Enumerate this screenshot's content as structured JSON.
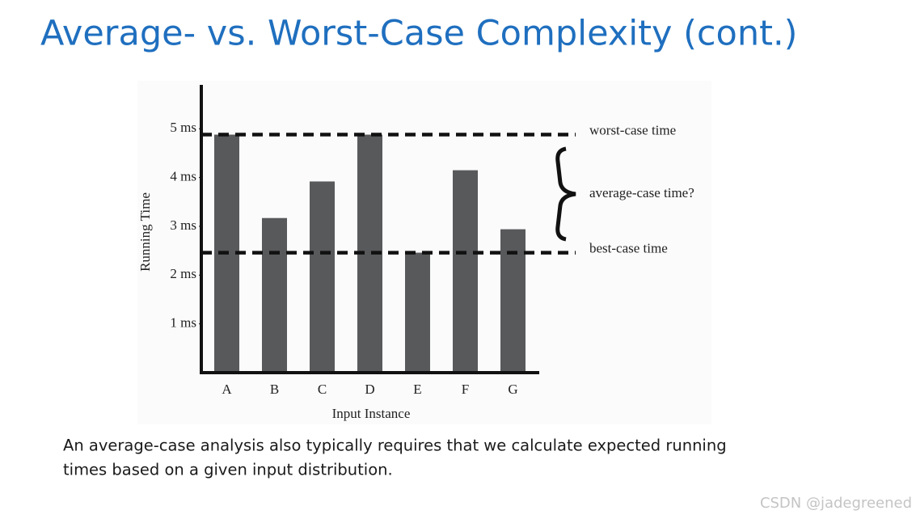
{
  "title": "Average- vs. Worst-Case Complexity (cont.)",
  "chart_data": {
    "type": "bar",
    "categories": [
      "A",
      "B",
      "C",
      "D",
      "E",
      "F",
      "G"
    ],
    "values": [
      4.88,
      3.17,
      3.92,
      4.88,
      2.46,
      4.15,
      2.94
    ],
    "color": "#58595b",
    "x_label": "Input Instance",
    "y_label": "Running Time",
    "ylim": [
      0,
      5.9
    ],
    "yticks": [
      {
        "value": 1,
        "label": "1 ms"
      },
      {
        "value": 2,
        "label": "2 ms"
      },
      {
        "value": 3,
        "label": "3 ms"
      },
      {
        "value": 4,
        "label": "4 ms"
      },
      {
        "value": 5,
        "label": "5 ms"
      }
    ],
    "reference_lines": [
      {
        "label": "worst-case time",
        "value": 4.88
      },
      {
        "label": "best-case time",
        "value": 2.46
      }
    ],
    "brace_label": "average-case time?"
  },
  "body": [
    "An average-case analysis also typically requires that we calculate expected running",
    "times based on a given input distribution."
  ],
  "watermark": "CSDN @jadegreened"
}
